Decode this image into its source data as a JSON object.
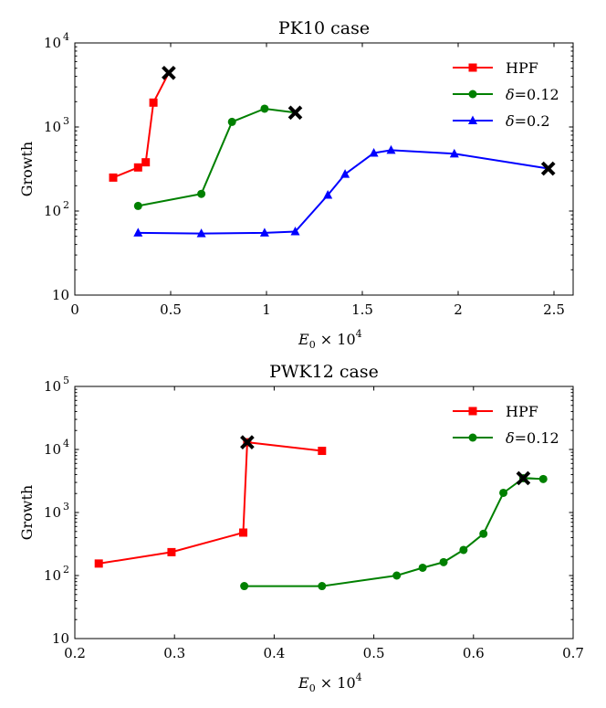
{
  "chart_data": [
    {
      "type": "line",
      "title": "PK10 case",
      "xlabel_base": "E",
      "xlabel_sub": "0",
      "xlabel_mult": "× 10",
      "xlabel_exp": "4",
      "ylabel": "Growth",
      "xscale": "linear",
      "yscale": "log",
      "xlim": [
        0,
        2.6
      ],
      "ylim": [
        10,
        10000
      ],
      "xticks": [
        {
          "value": 0,
          "label": "0"
        },
        {
          "value": 0.5,
          "label": "0.5"
        },
        {
          "value": 1,
          "label": "1"
        },
        {
          "value": 1.5,
          "label": "1.5"
        },
        {
          "value": 2,
          "label": "2"
        },
        {
          "value": 2.5,
          "label": "2.5"
        }
      ],
      "yticks": [
        {
          "value": 10,
          "base": "10",
          "exp": ""
        },
        {
          "value": 100,
          "base": "10",
          "exp": "2"
        },
        {
          "value": 1000,
          "base": "10",
          "exp": "3"
        },
        {
          "value": 10000,
          "base": "10",
          "exp": "4"
        }
      ],
      "legend_position": "top-right",
      "series": [
        {
          "name": "HPF",
          "label_base": "HPF",
          "label_value": "",
          "color": "#ff0000",
          "marker": "square",
          "x": [
            0.2,
            0.33,
            0.37,
            0.41
          ],
          "y": [
            250,
            330,
            380,
            1950
          ],
          "end": {
            "x": 0.49,
            "y": 4400
          }
        },
        {
          "name": "δ=0.12",
          "label_base": "δ",
          "label_value": "=0.12",
          "color": "#008000",
          "marker": "circle",
          "x": [
            0.33,
            0.66,
            0.82,
            0.99
          ],
          "y": [
            115,
            160,
            1150,
            1650
          ],
          "end": {
            "x": 1.15,
            "y": 1480
          }
        },
        {
          "name": "δ=0.2",
          "label_base": "δ",
          "label_value": "=0.2",
          "color": "#0000ff",
          "marker": "triangle",
          "x": [
            0.33,
            0.66,
            0.99,
            1.15,
            1.32,
            1.41,
            1.56,
            1.65,
            1.98
          ],
          "y": [
            55,
            54,
            55,
            57,
            155,
            275,
            490,
            530,
            480
          ],
          "end": {
            "x": 2.47,
            "y": 320
          }
        }
      ]
    },
    {
      "type": "line",
      "title": "PWK12 case",
      "xlabel_base": "E",
      "xlabel_sub": "0",
      "xlabel_mult": "× 10",
      "xlabel_exp": "4",
      "ylabel": "Growth",
      "xscale": "linear",
      "yscale": "log",
      "xlim": [
        0.2,
        0.7
      ],
      "ylim": [
        10,
        100000
      ],
      "xticks": [
        {
          "value": 0.2,
          "label": "0.2"
        },
        {
          "value": 0.3,
          "label": "0.3"
        },
        {
          "value": 0.4,
          "label": "0.4"
        },
        {
          "value": 0.5,
          "label": "0.5"
        },
        {
          "value": 0.6,
          "label": "0.6"
        },
        {
          "value": 0.7,
          "label": "0.7"
        }
      ],
      "yticks": [
        {
          "value": 10,
          "base": "10",
          "exp": ""
        },
        {
          "value": 100,
          "base": "10",
          "exp": "2"
        },
        {
          "value": 1000,
          "base": "10",
          "exp": "3"
        },
        {
          "value": 10000,
          "base": "10",
          "exp": "4"
        },
        {
          "value": 100000,
          "base": "10",
          "exp": "5"
        }
      ],
      "legend_position": "top-right",
      "series": [
        {
          "name": "HPF",
          "label_base": "HPF",
          "label_value": "",
          "color": "#ff0000",
          "marker": "square",
          "x": [
            0.224,
            0.297,
            0.369,
            0.373,
            0.448
          ],
          "y": [
            155,
            235,
            480,
            13000,
            9500
          ],
          "end": {
            "x": 0.373,
            "y": 13000
          }
        },
        {
          "name": "δ=0.12",
          "label_base": "δ",
          "label_value": "=0.12",
          "color": "#008000",
          "marker": "circle",
          "x": [
            0.37,
            0.448,
            0.523,
            0.549,
            0.57,
            0.59,
            0.61,
            0.63,
            0.65,
            0.67
          ],
          "y": [
            68,
            68,
            100,
            133,
            163,
            255,
            460,
            2050,
            3500,
            3400
          ],
          "end": {
            "x": 0.65,
            "y": 3500
          }
        }
      ]
    }
  ]
}
